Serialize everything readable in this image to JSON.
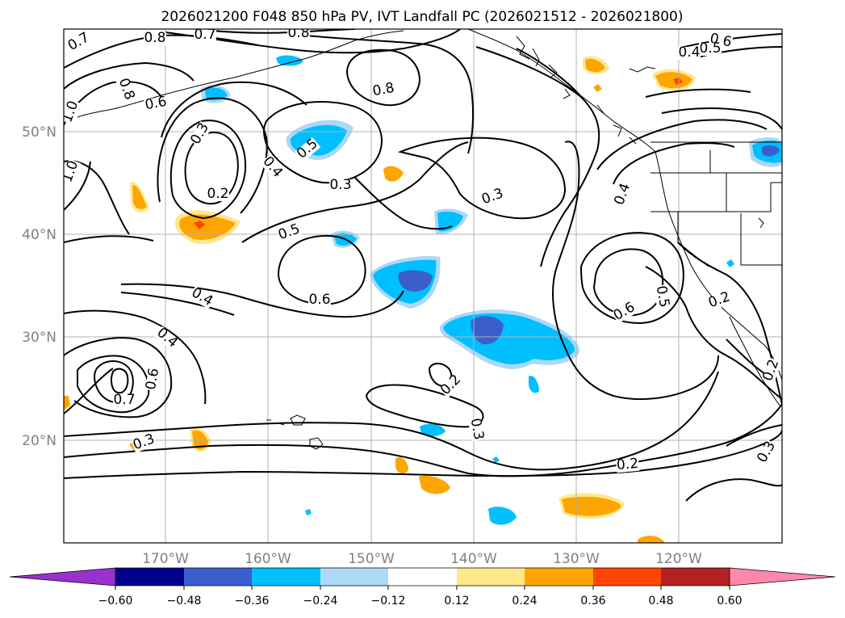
{
  "title": "2026021200 F048 850 hPa PV, IVT Landfall PC (2026021512 - 2026021800)",
  "map": {
    "lon_labels": [
      "170°W",
      "160°W",
      "150°W",
      "140°W",
      "130°W",
      "120°W"
    ],
    "lat_labels": [
      "50°N",
      "40°N",
      "30°N",
      "20°N"
    ],
    "lon_range": [
      -180,
      -110
    ],
    "lat_range": [
      10,
      60
    ],
    "gridlines": true
  },
  "colorbar": {
    "ticks": [
      "−0.60",
      "−0.48",
      "−0.36",
      "−0.24",
      "−0.12",
      "0.12",
      "0.24",
      "0.36",
      "0.48",
      "0.60"
    ],
    "colors": [
      "#9932CC",
      "#00008B",
      "#3A5FCD",
      "#00BFFF",
      "#ADD8F6",
      "#FFFFFF",
      "#FFE88C",
      "#FFA500",
      "#FF4500",
      "#B22222",
      "#FF88AA"
    ]
  },
  "contour_labels": [
    {
      "text": "0.7"
    },
    {
      "text": "0.8"
    },
    {
      "text": "0.7"
    },
    {
      "text": "0.8"
    },
    {
      "text": "0.6"
    },
    {
      "text": "0.5"
    },
    {
      "text": "0.4"
    },
    {
      "text": "0.8"
    },
    {
      "text": "0.8"
    },
    {
      "text": "0.6"
    },
    {
      "text": "1.0"
    },
    {
      "text": "0.3"
    },
    {
      "text": "0.5"
    },
    {
      "text": "0.4"
    },
    {
      "text": "1.0"
    },
    {
      "text": "0.3"
    },
    {
      "text": "0.2"
    },
    {
      "text": "0.3"
    },
    {
      "text": "0.4"
    },
    {
      "text": "0.5"
    },
    {
      "text": "0.6"
    },
    {
      "text": "0.4"
    },
    {
      "text": "0.6"
    },
    {
      "text": "0.5"
    },
    {
      "text": "0.2"
    },
    {
      "text": "0.4"
    },
    {
      "text": "0.6"
    },
    {
      "text": "0.7"
    },
    {
      "text": "0.2"
    },
    {
      "text": "0.3"
    },
    {
      "text": "0.3"
    },
    {
      "text": "0.2"
    },
    {
      "text": "0.3"
    },
    {
      "text": "0.2"
    }
  ]
}
